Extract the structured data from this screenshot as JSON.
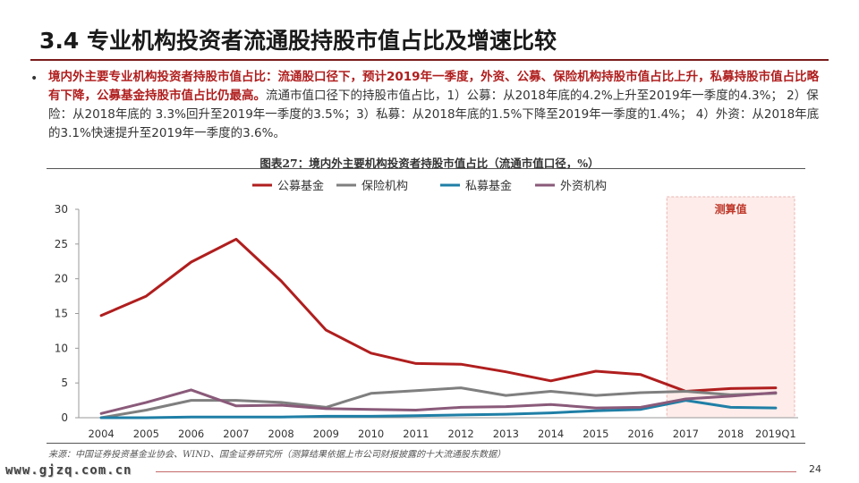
{
  "header": {
    "title": "3.4 专业机构投资者流通股持股市值占比及增速比较"
  },
  "summary": {
    "bullet": "•",
    "highlight": "境内外主要专业机构投资者持股市值占比：流通股口径下，预计2019年一季度，外资、公募、保险机构持股市值占比上升，私募持股市值占比略有下降，公募基金持股市值占比仍最高。",
    "body": "流通市值口径下的持股市值占比，1）公募：从2018年底的4.2%上升至2019年一季度的4.3%；  2）保险：从2018年底的 3.3%回升至2019年一季度的3.5%；3）私募：从2018年底的1.5%下降至2019年一季度的1.4%；  4）外资：从2018年底的3.1%快速提升至2019年一季度的3.6%。"
  },
  "figure": {
    "caption": "图表27：境内外主要机构投资者持股市值占比（流通市值口径，%）",
    "source": "来源：中国证券投资基金业协会、WIND、国金证券研究所（测算结果依据上市公司财报披露的十大流通股东数据）"
  },
  "footer": {
    "logo": "www.gjzq.com.cn",
    "page_number": "24"
  },
  "chart_data": {
    "type": "line",
    "title": "图表27：境内外主要机构投资者持股市值占比（流通市值口径，%）",
    "xlabel": "",
    "ylabel": "",
    "categories": [
      "2004",
      "2005",
      "2006",
      "2007",
      "2008",
      "2009",
      "2010",
      "2011",
      "2012",
      "2013",
      "2014",
      "2015",
      "2016",
      "2017",
      "2018",
      "2019Q1"
    ],
    "ylim": [
      0,
      30
    ],
    "yticks": [
      0,
      5,
      10,
      15,
      20,
      25,
      30
    ],
    "grid": false,
    "legend_position": "top-center",
    "estimate_region": {
      "label": "测算值",
      "from": "2017",
      "to": "2019Q1",
      "fill": "#fdecea",
      "border": "#e8b4b0",
      "label_color": "#c0392b"
    },
    "series": [
      {
        "name": "公募基金",
        "color": "#b01e1e",
        "values": [
          14.7,
          17.5,
          22.4,
          25.7,
          19.7,
          12.6,
          9.3,
          7.8,
          7.7,
          6.6,
          5.3,
          6.7,
          6.2,
          3.8,
          4.2,
          4.3
        ]
      },
      {
        "name": "保险机构",
        "color": "#7f7f7f",
        "values": [
          0.0,
          1.1,
          2.5,
          2.5,
          2.2,
          1.5,
          3.5,
          3.9,
          4.3,
          3.2,
          3.8,
          3.2,
          3.6,
          3.8,
          3.3,
          3.5
        ]
      },
      {
        "name": "私募基金",
        "color": "#1f7fa6",
        "values": [
          0.0,
          0.0,
          0.1,
          0.1,
          0.1,
          0.2,
          0.2,
          0.3,
          0.4,
          0.5,
          0.7,
          1.0,
          1.2,
          2.5,
          1.5,
          1.4
        ]
      },
      {
        "name": "外资机构",
        "color": "#8a5a7a",
        "values": [
          0.6,
          2.2,
          4.0,
          1.7,
          1.8,
          1.3,
          1.2,
          1.1,
          1.5,
          1.6,
          1.9,
          1.4,
          1.5,
          2.7,
          3.1,
          3.6
        ]
      }
    ]
  }
}
